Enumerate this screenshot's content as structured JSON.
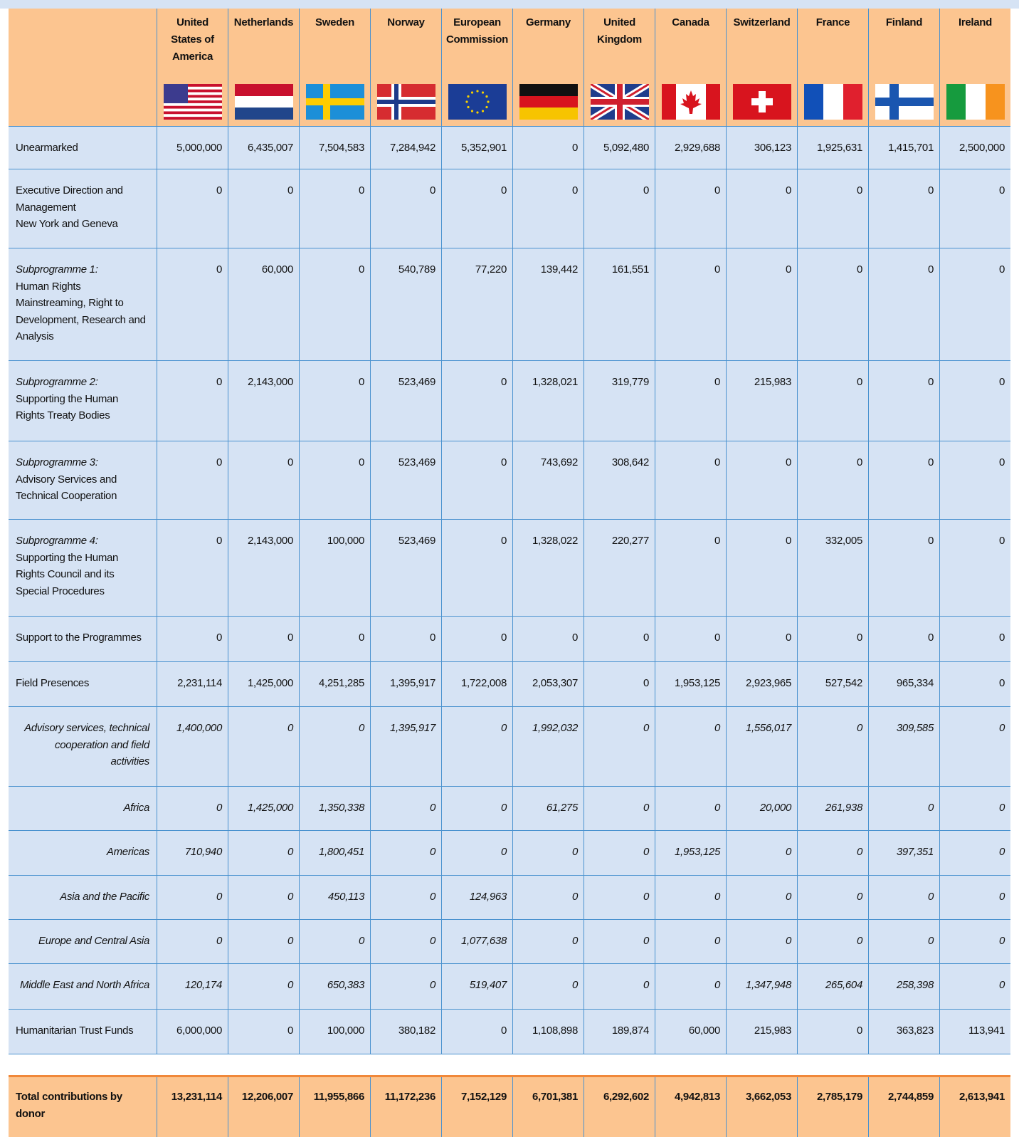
{
  "table": {
    "columns": [
      [
        "United",
        "States of",
        "America"
      ],
      [
        "Netherlands"
      ],
      [
        "Sweden"
      ],
      [
        "Norway"
      ],
      [
        "European",
        "Commission"
      ],
      [
        "Germany"
      ],
      [
        "United",
        "Kingdom"
      ],
      [
        "Canada"
      ],
      [
        "Switzerland"
      ],
      [
        "France"
      ],
      [
        "Finland"
      ],
      [
        "Ireland"
      ]
    ],
    "rows": [
      {
        "label": [
          "Unearmarked"
        ],
        "values": [
          "5,000,000",
          "6,435,007",
          "7,504,583",
          "7,284,942",
          "5,352,901",
          "0",
          "5,092,480",
          "2,929,688",
          "306,123",
          "1,925,631",
          "1,415,701",
          "2,500,000"
        ]
      },
      {
        "label": [
          "Executive Direction and",
          "Management",
          "New York and Geneva"
        ],
        "values": [
          "0",
          "0",
          "0",
          "0",
          "0",
          "0",
          "0",
          "0",
          "0",
          "0",
          "0",
          "0"
        ]
      },
      {
        "prefix": "Subprogramme 1:",
        "label": [
          "Human Rights",
          "Mainstreaming, Right to",
          "Development, Research and",
          "Analysis"
        ],
        "values": [
          "0",
          "60,000",
          "0",
          "540,789",
          "77,220",
          "139,442",
          "161,551",
          "0",
          "0",
          "0",
          "0",
          "0"
        ]
      },
      {
        "prefix": "Subprogramme 2:",
        "label": [
          "Supporting the Human",
          "Rights Treaty Bodies"
        ],
        "values": [
          "0",
          "2,143,000",
          "0",
          "523,469",
          "0",
          "1,328,021",
          "319,779",
          "0",
          "215,983",
          "0",
          "0",
          "0"
        ]
      },
      {
        "prefix": "Subprogramme 3:",
        "label": [
          "Advisory Services and",
          "Technical Cooperation"
        ],
        "values": [
          "0",
          "0",
          "0",
          "523,469",
          "0",
          "743,692",
          "308,642",
          "0",
          "0",
          "0",
          "0",
          "0"
        ]
      },
      {
        "prefix": "Subprogramme 4:",
        "label": [
          "Supporting the Human",
          "Rights Council and its",
          "Special Procedures"
        ],
        "values": [
          "0",
          "2,143,000",
          "100,000",
          "523,469",
          "0",
          "1,328,022",
          "220,277",
          "0",
          "0",
          "332,005",
          "0",
          "0"
        ]
      },
      {
        "label": [
          "Support to the Programmes"
        ],
        "values": [
          "0",
          "0",
          "0",
          "0",
          "0",
          "0",
          "0",
          "0",
          "0",
          "0",
          "0",
          "0"
        ]
      },
      {
        "label": [
          "Field Presences"
        ],
        "values": [
          "2,231,114",
          "1,425,000",
          "4,251,285",
          "1,395,917",
          "1,722,008",
          "2,053,307",
          "0",
          "1,953,125",
          "2,923,965",
          "527,542",
          "965,334",
          "0"
        ]
      },
      {
        "label": [
          "Advisory services, technical",
          "cooperation and field",
          "activities"
        ],
        "italic": true,
        "values": [
          "1,400,000",
          "0",
          "0",
          "1,395,917",
          "0",
          "1,992,032",
          "0",
          "0",
          "1,556,017",
          "0",
          "309,585",
          "0"
        ]
      },
      {
        "label": [
          "Africa"
        ],
        "italic": true,
        "values": [
          "0",
          "1,425,000",
          "1,350,338",
          "0",
          "0",
          "61,275",
          "0",
          "0",
          "20,000",
          "261,938",
          "0",
          "0"
        ]
      },
      {
        "label": [
          "Americas"
        ],
        "italic": true,
        "values": [
          "710,940",
          "0",
          "1,800,451",
          "0",
          "0",
          "0",
          "0",
          "1,953,125",
          "0",
          "0",
          "397,351",
          "0"
        ]
      },
      {
        "label": [
          "Asia and the Pacific"
        ],
        "italic": true,
        "values": [
          "0",
          "0",
          "450,113",
          "0",
          "124,963",
          "0",
          "0",
          "0",
          "0",
          "0",
          "0",
          "0"
        ]
      },
      {
        "label": [
          "Europe and Central Asia"
        ],
        "italic": true,
        "values": [
          "0",
          "0",
          "0",
          "0",
          "1,077,638",
          "0",
          "0",
          "0",
          "0",
          "0",
          "0",
          "0"
        ]
      },
      {
        "label": [
          "Middle East and North Africa"
        ],
        "italic": true,
        "values": [
          "120,174",
          "0",
          "650,383",
          "0",
          "519,407",
          "0",
          "0",
          "0",
          "1,347,948",
          "265,604",
          "258,398",
          "0"
        ]
      },
      {
        "label": [
          "Humanitarian Trust Funds"
        ],
        "values": [
          "6,000,000",
          "0",
          "100,000",
          "380,182",
          "0",
          "1,108,898",
          "189,874",
          "60,000",
          "215,983",
          "0",
          "363,823",
          "113,941"
        ]
      }
    ],
    "total": {
      "label": "Total contributions by donor",
      "values": [
        "13,231,114",
        "12,206,007",
        "11,955,866",
        "11,172,236",
        "7,152,129",
        "6,701,381",
        "6,292,602",
        "4,942,813",
        "3,662,053",
        "2,785,179",
        "2,744,859",
        "2,613,941"
      ]
    }
  }
}
